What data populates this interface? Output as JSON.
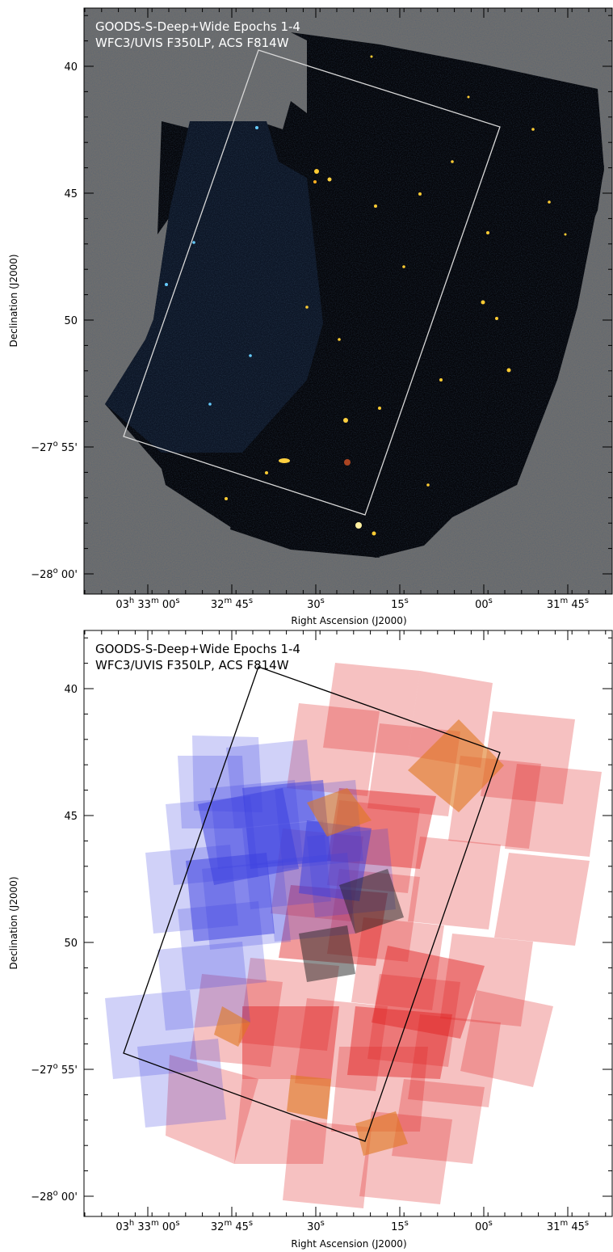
{
  "colors": {
    "top_background": "#6e6e6e",
    "top_footprint_outline": "#d8d8d8",
    "bottom_footprint_outline": "#000000",
    "uvis_tile": "#3a3ee0",
    "acs_tile": "#e02020",
    "overlap_tile": "#e07820"
  },
  "panels": [
    {
      "title_line1": "GOODS-S-Deep+Wide Epochs 1-4",
      "title_line2": "WFC3/UVIS F350LP, ACS F814W",
      "ylabel": "Declination (J2000)",
      "xlabel": "Right Ascension (J2000)",
      "y_ticks": [
        {
          "main": "40",
          "sup": ""
        },
        {
          "main": "45",
          "sup": ""
        },
        {
          "main": "50",
          "sup": ""
        },
        {
          "main": "−27",
          "sup": "o",
          "tail": " 55'"
        },
        {
          "main": "−28",
          "sup": "o",
          "tail": " 00'"
        }
      ],
      "x_ticks": [
        {
          "parts": [
            "03",
            "h",
            " 33",
            "m",
            " 00",
            "s"
          ]
        },
        {
          "parts": [
            "32",
            "m",
            " 45",
            "s"
          ]
        },
        {
          "parts": [
            "30",
            "s"
          ]
        },
        {
          "parts": [
            "15",
            "s"
          ]
        },
        {
          "parts": [
            "00",
            "s"
          ]
        },
        {
          "parts": [
            "31",
            "m",
            " 45",
            "s"
          ]
        }
      ]
    },
    {
      "title_line1": "GOODS-S-Deep+Wide Epochs 1-4",
      "title_line2": "WFC3/UVIS F350LP, ACS F814W",
      "ylabel": "Declination (J2000)",
      "xlabel": "Right Ascension (J2000)",
      "y_ticks": [
        {
          "main": "40",
          "sup": ""
        },
        {
          "main": "45",
          "sup": ""
        },
        {
          "main": "50",
          "sup": ""
        },
        {
          "main": "−27",
          "sup": "o",
          "tail": " 55'"
        },
        {
          "main": "−28",
          "sup": "o",
          "tail": " 00'"
        }
      ],
      "x_ticks": [
        {
          "parts": [
            "03",
            "h",
            " 33",
            "m",
            " 00",
            "s"
          ]
        },
        {
          "parts": [
            "32",
            "m",
            " 45",
            "s"
          ]
        },
        {
          "parts": [
            "30",
            "s"
          ]
        },
        {
          "parts": [
            "15",
            "s"
          ]
        },
        {
          "parts": [
            "00",
            "s"
          ]
        },
        {
          "parts": [
            "31",
            "m",
            " 45",
            "s"
          ]
        }
      ]
    }
  ]
}
